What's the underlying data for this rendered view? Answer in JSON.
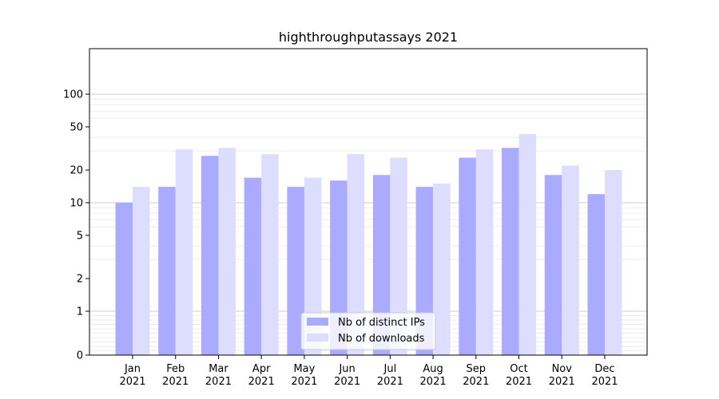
{
  "chart_data": {
    "type": "bar",
    "title": "highthroughputassays 2021",
    "xlabel": "",
    "ylabel": "",
    "yscale": "symlog",
    "ylim": [
      0,
      120
    ],
    "yticks": [
      0,
      1,
      2,
      5,
      10,
      20,
      50,
      100
    ],
    "grid": true,
    "legend_position": "bottom-center",
    "categories": [
      [
        "Jan",
        "2021"
      ],
      [
        "Feb",
        "2021"
      ],
      [
        "Mar",
        "2021"
      ],
      [
        "Apr",
        "2021"
      ],
      [
        "May",
        "2021"
      ],
      [
        "Jun",
        "2021"
      ],
      [
        "Jul",
        "2021"
      ],
      [
        "Aug",
        "2021"
      ],
      [
        "Sep",
        "2021"
      ],
      [
        "Oct",
        "2021"
      ],
      [
        "Nov",
        "2021"
      ],
      [
        "Dec",
        "2021"
      ]
    ],
    "series": [
      {
        "name": "Nb of distinct IPs",
        "color": "#aaaaff",
        "values": [
          10,
          14,
          27,
          17,
          14,
          16,
          18,
          14,
          26,
          32,
          18,
          12
        ]
      },
      {
        "name": "Nb of downloads",
        "color": "#ddddff",
        "values": [
          14,
          31,
          32,
          28,
          17,
          28,
          26,
          15,
          31,
          43,
          22,
          20
        ]
      }
    ]
  }
}
